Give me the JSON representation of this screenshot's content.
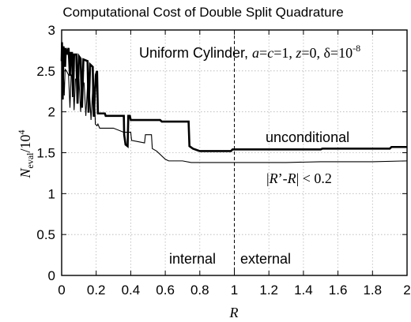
{
  "chart_data": {
    "type": "line",
    "title": "Computational Cost of Double Split Quadrature",
    "xlabel": "R",
    "ylabel_main": "N",
    "ylabel_sub": "eval",
    "ylabel_denominator": "/10",
    "ylabel_exponent": "4",
    "xlim": [
      0,
      2
    ],
    "ylim": [
      0,
      3
    ],
    "grid": true,
    "x_ticks": [
      "0",
      "0.2",
      "0.4",
      "0.6",
      "0.8",
      "1",
      "1.2",
      "1.4",
      "1.6",
      "1.8",
      "2"
    ],
    "y_ticks": [
      "0",
      "0.5",
      "1",
      "1.5",
      "2",
      "2.5",
      "3"
    ],
    "annotation": {
      "name_text": "Uniform Cylinder, ",
      "a_var": "a",
      "eq1": "=",
      "c_var": "c",
      "val1": "=1, ",
      "z_var": "z",
      "val2": "=0, δ=10",
      "exponent": "-8"
    },
    "vline": {
      "x": 1,
      "style": "dashed"
    },
    "region_labels": {
      "left": "internal",
      "right": "external"
    },
    "series": [
      {
        "name": "unconditional",
        "style": "thick",
        "color": "#000000",
        "points": [
          [
            0.0,
            2.62
          ],
          [
            0.002,
            2.85
          ],
          [
            0.006,
            2.15
          ],
          [
            0.01,
            2.8
          ],
          [
            0.016,
            2.74
          ],
          [
            0.02,
            2.55
          ],
          [
            0.024,
            2.78
          ],
          [
            0.03,
            2.7
          ],
          [
            0.04,
            2.78
          ],
          [
            0.048,
            2.44
          ],
          [
            0.052,
            2.72
          ],
          [
            0.06,
            2.72
          ],
          [
            0.066,
            2.18
          ],
          [
            0.072,
            2.7
          ],
          [
            0.085,
            2.7
          ],
          [
            0.092,
            2.1
          ],
          [
            0.1,
            2.68
          ],
          [
            0.11,
            2.65
          ],
          [
            0.118,
            2.05
          ],
          [
            0.126,
            2.64
          ],
          [
            0.15,
            2.62
          ],
          [
            0.156,
            1.99
          ],
          [
            0.165,
            2.58
          ],
          [
            0.18,
            2.55
          ],
          [
            0.186,
            1.94
          ],
          [
            0.198,
            2.45
          ],
          [
            0.205,
            2.5
          ],
          [
            0.21,
            1.98
          ],
          [
            0.25,
            1.98
          ],
          [
            0.255,
            1.95
          ],
          [
            0.36,
            1.95
          ],
          [
            0.362,
            1.72
          ],
          [
            0.37,
            1.6
          ],
          [
            0.382,
            1.58
          ],
          [
            0.386,
            1.95
          ],
          [
            0.395,
            1.95
          ],
          [
            0.4,
            1.9
          ],
          [
            0.57,
            1.9
          ],
          [
            0.58,
            1.88
          ],
          [
            0.735,
            1.88
          ],
          [
            0.74,
            1.58
          ],
          [
            0.76,
            1.55
          ],
          [
            0.8,
            1.52
          ],
          [
            0.98,
            1.52
          ],
          [
            0.99,
            1.54
          ],
          [
            1.5,
            1.54
          ],
          [
            1.51,
            1.55
          ],
          [
            1.9,
            1.55
          ],
          [
            1.91,
            1.57
          ],
          [
            2.0,
            1.57
          ]
        ]
      },
      {
        "name": "",
        "style": "thin",
        "color": "#000000",
        "points": [
          [
            0.0,
            2.3
          ],
          [
            0.005,
            2.55
          ],
          [
            0.01,
            2.48
          ],
          [
            0.015,
            2.2
          ],
          [
            0.02,
            2.52
          ],
          [
            0.028,
            2.5
          ],
          [
            0.04,
            2.45
          ],
          [
            0.048,
            2.05
          ],
          [
            0.055,
            2.45
          ],
          [
            0.065,
            2.42
          ],
          [
            0.072,
            2.02
          ],
          [
            0.08,
            2.4
          ],
          [
            0.1,
            2.4
          ],
          [
            0.11,
            2.0
          ],
          [
            0.118,
            2.38
          ],
          [
            0.13,
            2.35
          ],
          [
            0.14,
            1.95
          ],
          [
            0.15,
            2.32
          ],
          [
            0.16,
            2.3
          ],
          [
            0.17,
            1.9
          ],
          [
            0.18,
            2.28
          ],
          [
            0.19,
            2.25
          ],
          [
            0.195,
            1.85
          ],
          [
            0.205,
            1.83
          ],
          [
            0.21,
            1.85
          ],
          [
            0.22,
            1.8
          ],
          [
            0.3,
            1.8
          ],
          [
            0.36,
            1.75
          ],
          [
            0.4,
            1.75
          ],
          [
            0.405,
            1.65
          ],
          [
            0.48,
            1.62
          ],
          [
            0.485,
            1.72
          ],
          [
            0.52,
            1.72
          ],
          [
            0.525,
            1.55
          ],
          [
            0.55,
            1.52
          ],
          [
            0.6,
            1.42
          ],
          [
            0.62,
            1.4
          ],
          [
            0.7,
            1.4
          ],
          [
            0.75,
            1.38
          ],
          [
            0.98,
            1.38
          ],
          [
            0.99,
            1.38
          ],
          [
            1.3,
            1.38
          ],
          [
            1.5,
            1.39
          ],
          [
            1.8,
            1.39
          ],
          [
            2.0,
            1.4
          ]
        ]
      }
    ],
    "series_labels": {
      "unconditional": "unconditional",
      "condition": {
        "bar_open": "|",
        "r_prime": "R",
        "prime_minus": "’-",
        "r": "R",
        "bar_close": "| < 0.2"
      }
    }
  }
}
